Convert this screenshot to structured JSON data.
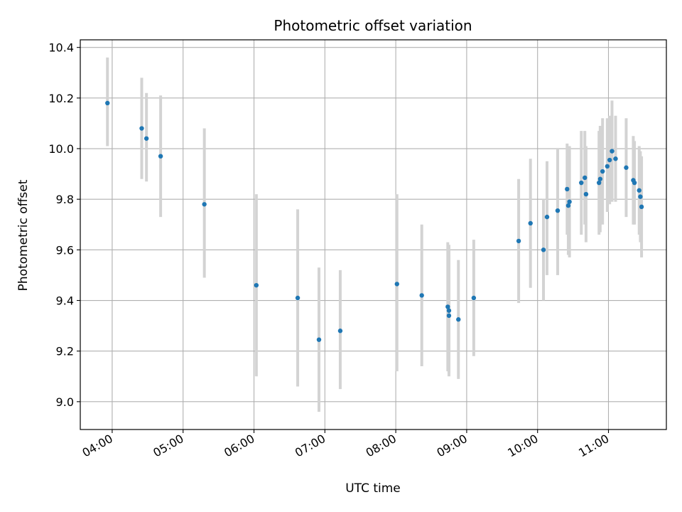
{
  "chart_data": {
    "type": "scatter",
    "title": "Photometric offset variation",
    "xlabel": "UTC time",
    "ylabel": "Photometric offset",
    "xlim": [
      "03:33",
      "11:49"
    ],
    "ylim": [
      8.89,
      10.43
    ],
    "x_ticks": [
      "04:00",
      "05:00",
      "06:00",
      "07:00",
      "08:00",
      "09:00",
      "10:00",
      "11:00"
    ],
    "y_ticks": [
      "9.0",
      "9.2",
      "9.4",
      "9.6",
      "9.8",
      "10.0",
      "10.2",
      "10.4"
    ],
    "grid": true,
    "colors": {
      "points": "#1f77b4",
      "error_bars": "#d3d3d3",
      "grid": "#b0b0b0"
    },
    "series": [
      {
        "points": [
          {
            "x": "03:56",
            "y": 10.18,
            "ylow": 10.01,
            "yhigh": 10.36
          },
          {
            "x": "04:25",
            "y": 10.08,
            "ylow": 9.88,
            "yhigh": 10.28
          },
          {
            "x": "04:29",
            "y": 10.04,
            "ylow": 9.87,
            "yhigh": 10.22
          },
          {
            "x": "04:41",
            "y": 9.97,
            "ylow": 9.73,
            "yhigh": 10.21
          },
          {
            "x": "05:18",
            "y": 9.78,
            "ylow": 9.49,
            "yhigh": 10.08
          },
          {
            "x": "06:02",
            "y": 9.46,
            "ylow": 9.1,
            "yhigh": 9.82
          },
          {
            "x": "06:37",
            "y": 9.41,
            "ylow": 9.06,
            "yhigh": 9.76
          },
          {
            "x": "06:55",
            "y": 9.245,
            "ylow": 8.96,
            "yhigh": 9.53
          },
          {
            "x": "07:13",
            "y": 9.28,
            "ylow": 9.05,
            "yhigh": 9.52
          },
          {
            "x": "08:01",
            "y": 9.465,
            "ylow": 9.12,
            "yhigh": 9.82
          },
          {
            "x": "08:22",
            "y": 9.42,
            "ylow": 9.14,
            "yhigh": 9.7
          },
          {
            "x": "08:44",
            "y": 9.375,
            "ylow": 9.12,
            "yhigh": 9.63
          },
          {
            "x": "08:45",
            "y": 9.36,
            "ylow": 9.11,
            "yhigh": 9.62
          },
          {
            "x": "08:45",
            "y": 9.34,
            "ylow": 9.1,
            "yhigh": 9.58
          },
          {
            "x": "08:53",
            "y": 9.325,
            "ylow": 9.09,
            "yhigh": 9.56
          },
          {
            "x": "09:06",
            "y": 9.41,
            "ylow": 9.18,
            "yhigh": 9.64
          },
          {
            "x": "09:44",
            "y": 9.635,
            "ylow": 9.39,
            "yhigh": 9.88
          },
          {
            "x": "09:54",
            "y": 9.705,
            "ylow": 9.45,
            "yhigh": 9.96
          },
          {
            "x": "10:05",
            "y": 9.6,
            "ylow": 9.4,
            "yhigh": 9.8
          },
          {
            "x": "10:08",
            "y": 9.73,
            "ylow": 9.5,
            "yhigh": 9.95
          },
          {
            "x": "10:17",
            "y": 9.755,
            "ylow": 9.5,
            "yhigh": 10.0
          },
          {
            "x": "10:25",
            "y": 9.84,
            "ylow": 9.66,
            "yhigh": 10.02
          },
          {
            "x": "10:26",
            "y": 9.775,
            "ylow": 9.58,
            "yhigh": 9.97
          },
          {
            "x": "10:27",
            "y": 9.79,
            "ylow": 9.57,
            "yhigh": 10.01
          },
          {
            "x": "10:37",
            "y": 9.865,
            "ylow": 9.66,
            "yhigh": 10.07
          },
          {
            "x": "10:40",
            "y": 9.885,
            "ylow": 9.7,
            "yhigh": 10.07
          },
          {
            "x": "10:41",
            "y": 9.82,
            "ylow": 9.63,
            "yhigh": 10.01
          },
          {
            "x": "10:52",
            "y": 9.865,
            "ylow": 9.66,
            "yhigh": 10.07
          },
          {
            "x": "10:53",
            "y": 9.88,
            "ylow": 9.67,
            "yhigh": 10.09
          },
          {
            "x": "10:55",
            "y": 9.91,
            "ylow": 9.7,
            "yhigh": 10.12
          },
          {
            "x": "10:59",
            "y": 9.93,
            "ylow": 9.75,
            "yhigh": 10.12
          },
          {
            "x": "11:01",
            "y": 9.955,
            "ylow": 9.78,
            "yhigh": 10.13
          },
          {
            "x": "11:03",
            "y": 9.99,
            "ylow": 9.79,
            "yhigh": 10.19
          },
          {
            "x": "11:06",
            "y": 9.96,
            "ylow": 9.79,
            "yhigh": 10.13
          },
          {
            "x": "11:15",
            "y": 9.925,
            "ylow": 9.73,
            "yhigh": 10.12
          },
          {
            "x": "11:21",
            "y": 9.875,
            "ylow": 9.7,
            "yhigh": 10.05
          },
          {
            "x": "11:22",
            "y": 9.865,
            "ylow": 9.7,
            "yhigh": 10.03
          },
          {
            "x": "11:26",
            "y": 9.835,
            "ylow": 9.66,
            "yhigh": 10.01
          },
          {
            "x": "11:27",
            "y": 9.81,
            "ylow": 9.63,
            "yhigh": 9.99
          },
          {
            "x": "11:28",
            "y": 9.77,
            "ylow": 9.57,
            "yhigh": 9.97
          }
        ]
      }
    ]
  }
}
